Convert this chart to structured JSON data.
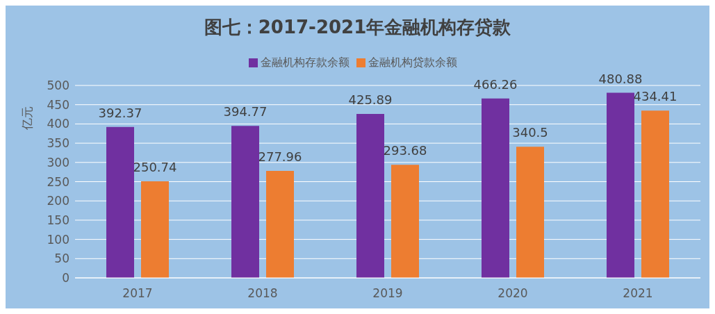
{
  "chart_data": {
    "type": "bar",
    "title": "图七：2017-2021年金融机构存贷款",
    "ylabel": "亿元",
    "categories": [
      "2017",
      "2018",
      "2019",
      "2020",
      "2021"
    ],
    "series": [
      {
        "name": "金融机构存款余额",
        "color": "#7030a0",
        "values": [
          392.37,
          394.77,
          425.89,
          466.26,
          480.88
        ]
      },
      {
        "name": "金融机构贷款余额",
        "color": "#ed7d31",
        "values": [
          250.74,
          277.96,
          293.68,
          340.5,
          434.41
        ]
      }
    ],
    "ylim": [
      0,
      500
    ],
    "yticks": [
      0,
      50,
      100,
      150,
      200,
      250,
      300,
      350,
      400,
      450,
      500
    ],
    "grid": "y",
    "legend": "top",
    "data_labels": true
  }
}
